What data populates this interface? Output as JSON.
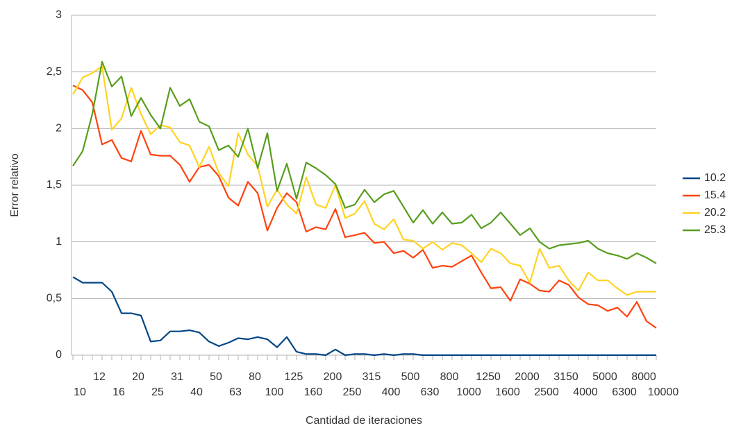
{
  "chart_data": {
    "type": "line",
    "x_label": "Cantidad de iteraciones",
    "y_label": "Error relativo",
    "categories": [
      "10",
      null,
      "12",
      null,
      "16",
      null,
      "20",
      null,
      "25",
      null,
      "31",
      null,
      "40",
      null,
      "50",
      null,
      "63",
      null,
      "80",
      null,
      "100",
      null,
      "125",
      null,
      "160",
      null,
      "200",
      null,
      "250",
      null,
      "315",
      null,
      "400",
      null,
      "500",
      null,
      "630",
      null,
      "800",
      null,
      "1000",
      null,
      "1250",
      null,
      "1600",
      null,
      "2000",
      null,
      "2500",
      null,
      "3150",
      null,
      "4000",
      null,
      "5000",
      null,
      "6300",
      null,
      "8000",
      null,
      "10000"
    ],
    "ylim": [
      0,
      3
    ],
    "yticks": [
      0,
      {
        "value": 0.5,
        "label": "0,5"
      },
      1,
      {
        "value": 1.5,
        "label": "1,5"
      },
      2,
      {
        "value": 2.5,
        "label": "2,5"
      },
      3
    ],
    "grid": true,
    "legend": "right",
    "series": [
      {
        "name": "10.2",
        "color": "#004586",
        "values": [
          0.69,
          0.64,
          0.64,
          0.64,
          0.56,
          0.37,
          0.37,
          0.35,
          0.12,
          0.13,
          0.21,
          0.21,
          0.22,
          0.2,
          0.12,
          0.08,
          0.11,
          0.15,
          0.14,
          0.16,
          0.14,
          0.07,
          0.16,
          0.03,
          0.01,
          0.01,
          0,
          0.05,
          0,
          0.01,
          0.01,
          0,
          0.01,
          0,
          0.01,
          0.01,
          0,
          0,
          0,
          0,
          0,
          0,
          0,
          0,
          0,
          0,
          0,
          0,
          0,
          0,
          0,
          0,
          0,
          0,
          0,
          0,
          0,
          0,
          0,
          0,
          0
        ]
      },
      {
        "name": "15.4",
        "color": "#ff420e",
        "values": [
          2.38,
          2.34,
          2.23,
          1.86,
          1.9,
          1.74,
          1.71,
          1.98,
          1.77,
          1.76,
          1.76,
          1.68,
          1.53,
          1.66,
          1.68,
          1.58,
          1.39,
          1.32,
          1.53,
          1.43,
          1.1,
          1.3,
          1.43,
          1.35,
          1.09,
          1.13,
          1.11,
          1.29,
          1.04,
          1.06,
          1.08,
          0.99,
          1.0,
          0.9,
          0.92,
          0.86,
          0.93,
          0.77,
          0.79,
          0.78,
          0.83,
          0.88,
          0.73,
          0.59,
          0.6,
          0.48,
          0.67,
          0.63,
          0.57,
          0.56,
          0.66,
          0.62,
          0.51,
          0.45,
          0.44,
          0.39,
          0.42,
          0.34,
          0.47,
          0.3,
          0.24
        ]
      },
      {
        "name": "20.2",
        "color": "#ffd320",
        "values": [
          2.3,
          2.45,
          2.49,
          2.55,
          1.99,
          2.09,
          2.36,
          2.13,
          1.95,
          2.03,
          2.01,
          1.88,
          1.85,
          1.66,
          1.84,
          1.61,
          1.49,
          1.96,
          1.77,
          1.67,
          1.31,
          1.46,
          1.33,
          1.25,
          1.57,
          1.33,
          1.3,
          1.5,
          1.21,
          1.25,
          1.36,
          1.16,
          1.11,
          1.2,
          1.02,
          1.01,
          0.94,
          1.0,
          0.93,
          0.99,
          0.97,
          0.9,
          0.82,
          0.94,
          0.9,
          0.81,
          0.79,
          0.64,
          0.94,
          0.77,
          0.79,
          0.66,
          0.57,
          0.73,
          0.66,
          0.66,
          0.59,
          0.53,
          0.56,
          0.56,
          0.56
        ]
      },
      {
        "name": "25.3",
        "color": "#579d1c",
        "values": [
          1.67,
          1.8,
          2.13,
          2.59,
          2.37,
          2.46,
          2.11,
          2.27,
          2.12,
          2.0,
          2.36,
          2.2,
          2.26,
          2.06,
          2.02,
          1.81,
          1.85,
          1.75,
          2.0,
          1.65,
          1.96,
          1.45,
          1.69,
          1.38,
          1.7,
          1.65,
          1.59,
          1.51,
          1.3,
          1.33,
          1.46,
          1.35,
          1.42,
          1.45,
          1.31,
          1.17,
          1.28,
          1.16,
          1.26,
          1.16,
          1.17,
          1.24,
          1.12,
          1.17,
          1.26,
          1.16,
          1.06,
          1.12,
          1.0,
          0.94,
          0.97,
          0.98,
          0.99,
          1.01,
          0.94,
          0.9,
          0.88,
          0.85,
          0.9,
          0.86,
          0.81
        ]
      }
    ]
  }
}
